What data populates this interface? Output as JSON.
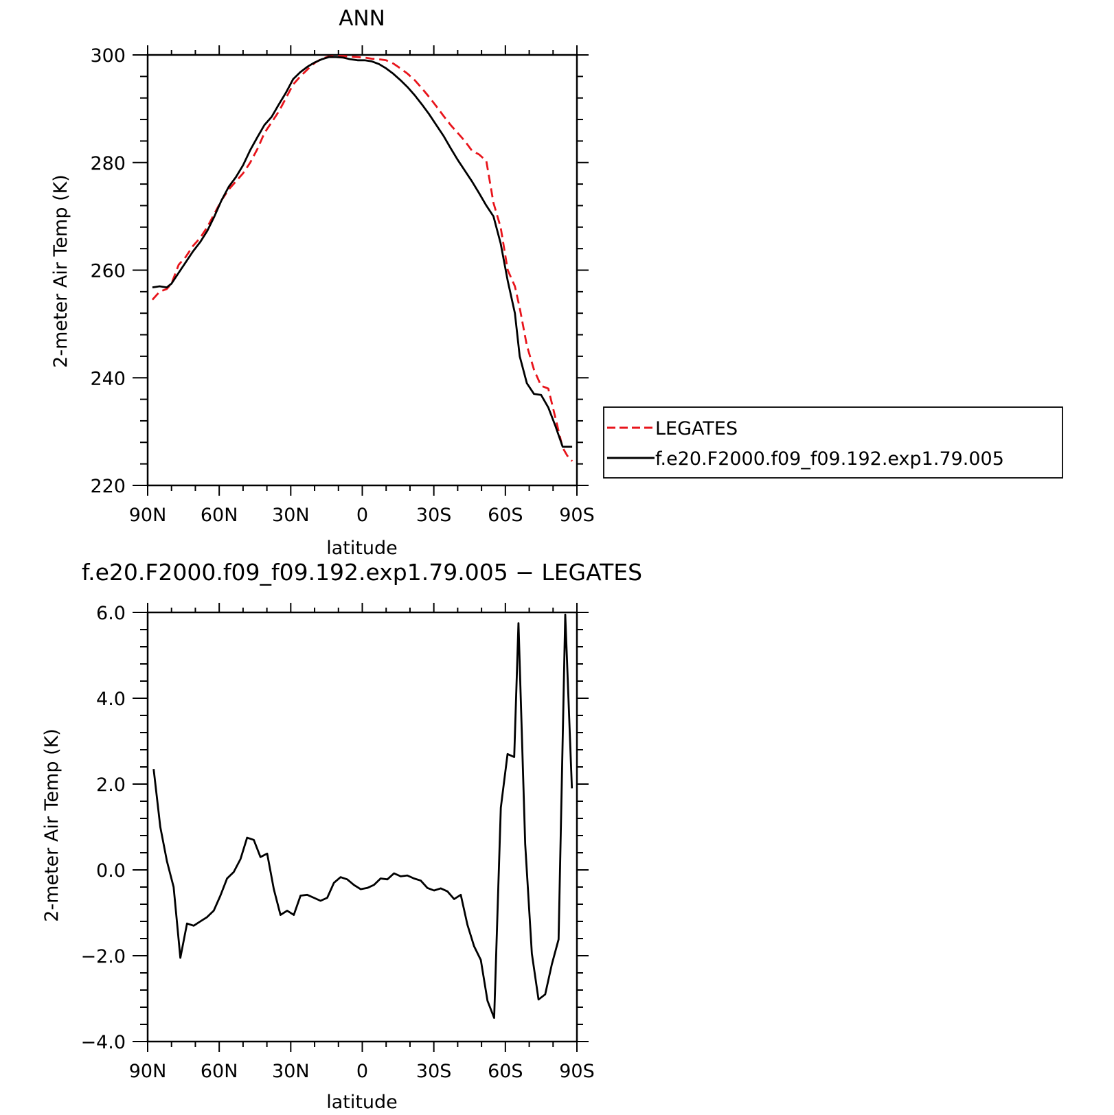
{
  "chart_data": [
    {
      "type": "line",
      "title": "ANN",
      "xlabel": "latitude",
      "ylabel": "2-meter Air Temp (K)",
      "xlim": [
        90,
        -90
      ],
      "ylim": [
        220,
        300
      ],
      "x_ticks": [
        90,
        60,
        30,
        0,
        -30,
        -60,
        -90
      ],
      "x_tick_labels": [
        "90N",
        "60N",
        "30N",
        "0",
        "30S",
        "60S",
        "90S"
      ],
      "y_ticks": [
        220,
        240,
        260,
        280,
        300
      ],
      "y_tick_labels": [
        "220",
        "240",
        "260",
        "280",
        "300"
      ],
      "legend_position": "right",
      "series": [
        {
          "name": "LEGATES",
          "color": "#e8141b",
          "style": "dashed",
          "x": [
            88,
            85,
            82,
            80,
            77,
            74,
            71,
            68,
            65,
            62,
            59,
            56,
            53,
            50,
            47,
            44,
            41,
            38,
            35,
            32,
            29,
            26,
            23,
            20,
            17,
            14,
            11,
            8,
            5,
            2,
            -1,
            -4,
            -7,
            -10,
            -13,
            -16,
            -19,
            -22,
            -25,
            -28,
            -31,
            -34,
            -37,
            -40,
            -43,
            -46,
            -49,
            -52,
            -55,
            -58,
            -61,
            -64,
            -66,
            -69,
            -72,
            -75,
            -78,
            -81,
            -84,
            -86,
            -88
          ],
          "y": [
            254.5,
            256,
            256.5,
            257.5,
            261,
            262.5,
            264.5,
            266,
            268,
            270.5,
            273,
            275,
            276.5,
            278,
            280,
            282.5,
            285.5,
            287.5,
            289.5,
            292,
            294.5,
            296,
            297.3,
            298.5,
            299.3,
            299.7,
            299.8,
            299.8,
            299.7,
            299.6,
            299.5,
            299.3,
            299.2,
            299,
            298.4,
            297.5,
            296.5,
            295.3,
            293.8,
            292.2,
            290.5,
            288.7,
            287,
            285.5,
            284,
            282.2,
            281.5,
            280.3,
            272.5,
            268,
            260,
            257,
            253,
            246,
            241.5,
            238.5,
            238,
            232.5,
            227,
            225.5,
            224.5
          ]
        },
        {
          "name": "f.e20.F2000.f09_f09.192.exp1.79.005",
          "color": "#000000",
          "style": "solid",
          "x": [
            88,
            85,
            82,
            80,
            77,
            74,
            71,
            68,
            65,
            62,
            59,
            56,
            53,
            50,
            47,
            44,
            41,
            38,
            35,
            32,
            29,
            26,
            23,
            20,
            17,
            14,
            11,
            8,
            5,
            2,
            -1,
            -4,
            -7,
            -10,
            -13,
            -16,
            -19,
            -22,
            -25,
            -28,
            -31,
            -34,
            -37,
            -40,
            -43,
            -46,
            -49,
            -52,
            -55,
            -58,
            -61,
            -64,
            -66,
            -69,
            -72,
            -75,
            -78,
            -81,
            -84,
            -86,
            -88
          ],
          "y": [
            256.8,
            257,
            256.8,
            257.5,
            259.5,
            261.5,
            263.5,
            265.2,
            267.3,
            270,
            273,
            275.5,
            277.3,
            279.5,
            282.3,
            284.7,
            287,
            288.5,
            290.8,
            293,
            295.5,
            296.8,
            297.8,
            298.6,
            299.2,
            299.6,
            299.6,
            299.5,
            299.2,
            299,
            299,
            298.8,
            298.3,
            297.5,
            296.5,
            295.3,
            294,
            292.5,
            290.8,
            289,
            287,
            285,
            282.7,
            280.5,
            278.5,
            276.5,
            274.3,
            272,
            270,
            265,
            258,
            252,
            244,
            239,
            237,
            236.8,
            234.5,
            231,
            227.2,
            227.2,
            227.2
          ]
        }
      ]
    },
    {
      "type": "line",
      "title": "f.e20.F2000.f09_f09.192.exp1.79.005 − LEGATES",
      "xlabel": "latitude",
      "ylabel": "2-meter Air Temp (K)",
      "xlim": [
        90,
        -90
      ],
      "ylim": [
        -4,
        6
      ],
      "x_ticks": [
        90,
        60,
        30,
        0,
        -30,
        -60,
        -90
      ],
      "x_tick_labels": [
        "90N",
        "60N",
        "30N",
        "0",
        "30S",
        "60S",
        "90S"
      ],
      "y_ticks": [
        -4,
        -2,
        0,
        2,
        4,
        6
      ],
      "y_tick_labels": [
        "−4.0",
        "−2.0",
        "0.0",
        "2.0",
        "4.0",
        "6.0"
      ],
      "series": [
        {
          "color": "#000000",
          "style": "solid",
          "x": [
            87.5,
            84.7,
            81.9,
            79.1,
            76.3,
            73.5,
            70.7,
            67.9,
            65.1,
            62.3,
            59.5,
            56.7,
            53.9,
            51.1,
            48.3,
            45.5,
            42.7,
            39.9,
            37.1,
            34.3,
            31.5,
            28.7,
            25.9,
            23.1,
            20.3,
            17.5,
            14.7,
            11.9,
            9.1,
            6.3,
            3.5,
            0.7,
            -2.1,
            -4.9,
            -7.7,
            -10.5,
            -13.3,
            -16.1,
            -18.9,
            -21.7,
            -24.5,
            -27.3,
            -30.1,
            -32.9,
            -35.7,
            -38.5,
            -41.3,
            -44.1,
            -46.9,
            -49.7,
            -52.5,
            -55.3,
            -58.1,
            -60.9,
            -63.7,
            -65.5,
            -68.3,
            -71.1,
            -73.9,
            -76.7,
            -79.5,
            -82.3,
            -85.1,
            -87.9
          ],
          "y": [
            2.35,
            1.0,
            0.2,
            -0.4,
            -2.05,
            -1.25,
            -1.3,
            -1.2,
            -1.1,
            -0.95,
            -0.6,
            -0.2,
            -0.05,
            0.25,
            0.75,
            0.7,
            0.3,
            0.38,
            -0.45,
            -1.05,
            -0.95,
            -1.05,
            -0.6,
            -0.58,
            -0.65,
            -0.72,
            -0.65,
            -0.3,
            -0.17,
            -0.22,
            -0.35,
            -0.45,
            -0.42,
            -0.35,
            -0.2,
            -0.22,
            -0.08,
            -0.15,
            -0.13,
            -0.2,
            -0.25,
            -0.42,
            -0.48,
            -0.43,
            -0.5,
            -0.68,
            -0.58,
            -1.28,
            -1.78,
            -2.1,
            -3.05,
            -3.45,
            1.45,
            2.7,
            2.63,
            5.75,
            0.6,
            -1.95,
            -3.02,
            -2.9,
            -2.2,
            -1.62,
            5.95,
            1.9
          ]
        }
      ]
    }
  ]
}
